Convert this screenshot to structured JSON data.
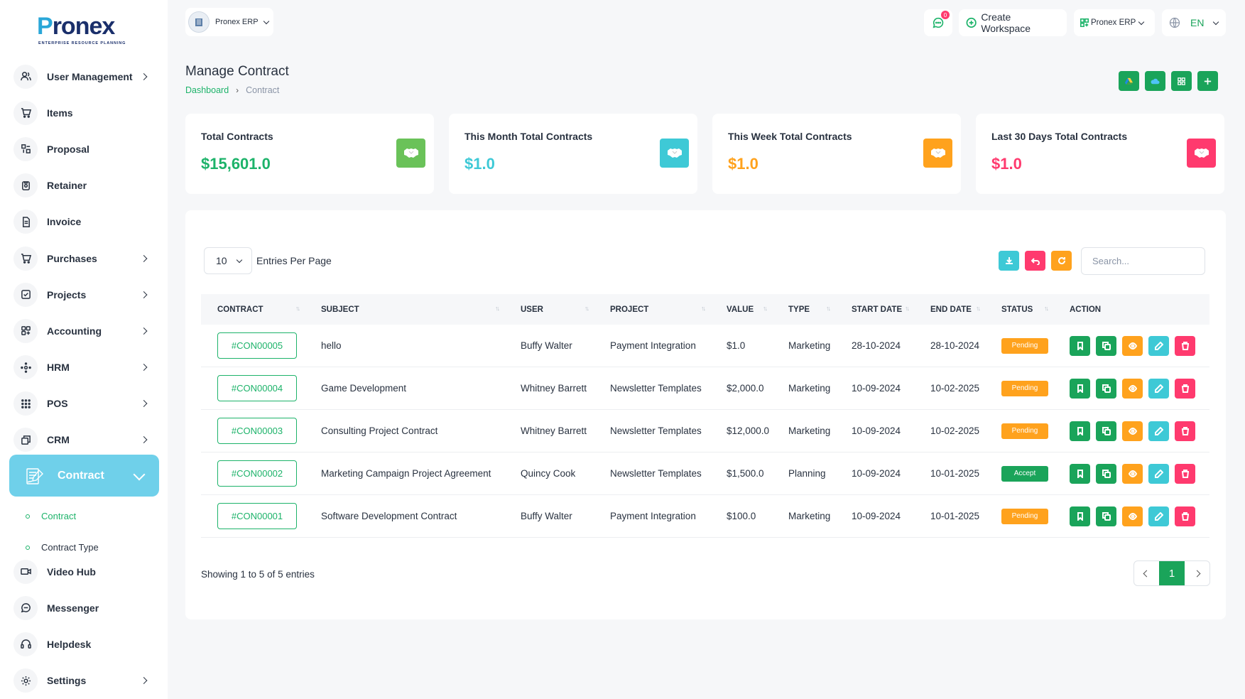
{
  "brand": {
    "name_p": "P",
    "name_rest": "ronex",
    "tagline": "ENTERPRISE RESOURCE PLANNING"
  },
  "sidebar": {
    "items": [
      {
        "label": "User Management",
        "icon": "users-icon"
      },
      {
        "label": "Items",
        "icon": "cart-icon"
      },
      {
        "label": "Proposal",
        "icon": "proposal-icon"
      },
      {
        "label": "Retainer",
        "icon": "retainer-icon"
      },
      {
        "label": "Invoice",
        "icon": "invoice-icon"
      },
      {
        "label": "Purchases",
        "icon": "cart-icon"
      },
      {
        "label": "Projects",
        "icon": "checkbox-icon"
      },
      {
        "label": "Accounting",
        "icon": "grid-icon"
      },
      {
        "label": "HRM",
        "icon": "hrm-icon"
      },
      {
        "label": "POS",
        "icon": "dots-grid-icon"
      },
      {
        "label": "CRM",
        "icon": "layers-icon"
      }
    ],
    "active": {
      "label": "Contract",
      "icon": "contract-icon"
    },
    "sub_items": [
      {
        "label": "Contract",
        "color": "#1db36a"
      },
      {
        "label": "Contract Type",
        "color": "#293240"
      }
    ],
    "lower_items": [
      {
        "label": "Video Hub",
        "icon": "video-icon"
      },
      {
        "label": "Messenger",
        "icon": "message-icon"
      },
      {
        "label": "Helpdesk",
        "icon": "headset-icon"
      },
      {
        "label": "Settings",
        "icon": "gear-icon"
      }
    ]
  },
  "topbar": {
    "workspace": "Pronex ERP",
    "chat_badge": "0",
    "create_workspace": "Create Workspace",
    "app_switch": "Pronex ERP",
    "language": "EN"
  },
  "page": {
    "title": "Manage Contract",
    "breadcrumb": [
      "Dashboard",
      "Contract"
    ]
  },
  "stats": [
    {
      "title": "Total Contracts",
      "value": "$15,601.0",
      "color": "#1db36a",
      "icon_bg": "#6ac259"
    },
    {
      "title": "This Month Total Contracts",
      "value": "$1.0",
      "color": "#3ec9d6",
      "icon_bg": "#3ec9d6"
    },
    {
      "title": "This Week Total Contracts",
      "value": "$1.0",
      "color": "#ffa21d",
      "icon_bg": "#ffa21d"
    },
    {
      "title": "Last 30 Days Total Contracts",
      "value": "$1.0",
      "color": "#ff3a6e",
      "icon_bg": "#ff3a6e"
    }
  ],
  "table": {
    "per_page": "10",
    "per_page_label": "Entries Per Page",
    "search_placeholder": "Search...",
    "columns": [
      "CONTRACT",
      "SUBJECT",
      "USER",
      "PROJECT",
      "VALUE",
      "TYPE",
      "START DATE",
      "END DATE",
      "STATUS",
      "ACTION"
    ],
    "rows": [
      {
        "contract": "#CON00005",
        "subject": "hello",
        "user": "Buffy Walter",
        "project": "Payment Integration",
        "value": "$1.0",
        "type": "Marketing",
        "start": "28-10-2024",
        "end": "28-10-2024",
        "status": "Pending"
      },
      {
        "contract": "#CON00004",
        "subject": "Game Development",
        "user": "Whitney Barrett",
        "project": "Newsletter Templates",
        "value": "$2,000.0",
        "type": "Marketing",
        "start": "10-09-2024",
        "end": "10-02-2025",
        "status": "Pending"
      },
      {
        "contract": "#CON00003",
        "subject": "Consulting Project Contract",
        "user": "Whitney Barrett",
        "project": "Newsletter Templates",
        "value": "$12,000.0",
        "type": "Marketing",
        "start": "10-09-2024",
        "end": "10-02-2025",
        "status": "Pending"
      },
      {
        "contract": "#CON00002",
        "subject": "Marketing Campaign Project Agreement",
        "user": "Quincy Cook",
        "project": "Newsletter Templates",
        "value": "$1,500.0",
        "type": "Planning",
        "start": "10-09-2024",
        "end": "10-01-2025",
        "status": "Accept"
      },
      {
        "contract": "#CON00001",
        "subject": "Software Development Contract",
        "user": "Buffy Walter",
        "project": "Payment Integration",
        "value": "$100.0",
        "type": "Marketing",
        "start": "10-09-2024",
        "end": "10-01-2025",
        "status": "Pending"
      }
    ],
    "status_colors": {
      "Pending": "#ffa21d",
      "Accept": "#1aa45a"
    },
    "showing": "Showing 1 to 5 of 5 entries",
    "current_page": "1"
  },
  "colors": {
    "primary": "#1aa45a",
    "info": "#3ec9d6",
    "warning": "#ffa21d",
    "danger": "#ff3a6e",
    "active_nav": "#6fd0ea"
  }
}
